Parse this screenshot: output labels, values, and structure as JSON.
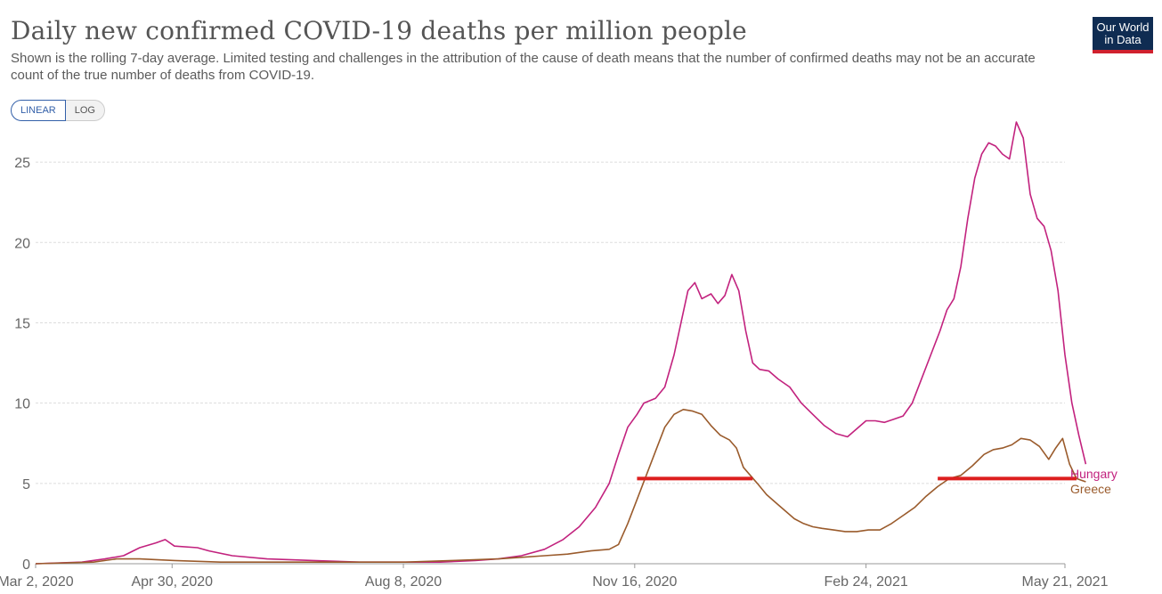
{
  "header": {
    "title": "Daily new confirmed COVID-19 deaths per million people",
    "subtitle": "Shown is the rolling 7-day average. Limited testing and challenges in the attribution of the cause of death means that the number of confirmed deaths may not be an accurate count of the true number of deaths from COVID-19.",
    "logo_line1": "Our World",
    "logo_line2": "in Data"
  },
  "controls": {
    "linear_label": "LINEAR",
    "log_label": "LOG",
    "selected": "LINEAR"
  },
  "colors": {
    "hungary": "#c2227e",
    "greece": "#9a5b2c",
    "highlight": "#dd1f1f",
    "grid": "#dddddd",
    "logo_bg": "#0f2c52",
    "logo_accent": "#d0202e",
    "toggle_active": "#3360a9"
  },
  "chart_data": {
    "type": "line",
    "title": "Daily new confirmed COVID-19 deaths per million people",
    "xlabel": "",
    "ylabel": "",
    "xlim": [
      "2020-03-02",
      "2021-05-21"
    ],
    "ylim": [
      0,
      27
    ],
    "x_ticks": [
      {
        "day": 0,
        "label": "Mar 2, 2020"
      },
      {
        "day": 59,
        "label": "Apr 30, 2020"
      },
      {
        "day": 159,
        "label": "Aug 8, 2020"
      },
      {
        "day": 259,
        "label": "Nov 16, 2020"
      },
      {
        "day": 359,
        "label": "Feb 24, 2021"
      },
      {
        "day": 445,
        "label": "May 21, 2021"
      }
    ],
    "y_ticks": [
      0,
      5,
      10,
      15,
      20,
      25
    ],
    "grid": true,
    "x_unit": "days since Mar 2, 2020",
    "series": [
      {
        "name": "Hungary",
        "points": [
          [
            0,
            0
          ],
          [
            20,
            0.1
          ],
          [
            30,
            0.3
          ],
          [
            38,
            0.5
          ],
          [
            45,
            1.0
          ],
          [
            52,
            1.3
          ],
          [
            56,
            1.5
          ],
          [
            60,
            1.1
          ],
          [
            70,
            1.0
          ],
          [
            75,
            0.8
          ],
          [
            85,
            0.5
          ],
          [
            100,
            0.3
          ],
          [
            120,
            0.2
          ],
          [
            140,
            0.1
          ],
          [
            160,
            0.1
          ],
          [
            175,
            0.1
          ],
          [
            190,
            0.2
          ],
          [
            200,
            0.3
          ],
          [
            210,
            0.5
          ],
          [
            220,
            0.9
          ],
          [
            228,
            1.5
          ],
          [
            235,
            2.3
          ],
          [
            242,
            3.5
          ],
          [
            248,
            5.0
          ],
          [
            252,
            6.8
          ],
          [
            256,
            8.5
          ],
          [
            260,
            9.3
          ],
          [
            263,
            10.0
          ],
          [
            268,
            10.3
          ],
          [
            272,
            11.0
          ],
          [
            276,
            13.0
          ],
          [
            279,
            15.0
          ],
          [
            282,
            17.0
          ],
          [
            285,
            17.5
          ],
          [
            288,
            16.5
          ],
          [
            292,
            16.8
          ],
          [
            295,
            16.2
          ],
          [
            298,
            16.7
          ],
          [
            301,
            18.0
          ],
          [
            304,
            17.0
          ],
          [
            307,
            14.5
          ],
          [
            310,
            12.5
          ],
          [
            313,
            12.1
          ],
          [
            317,
            12.0
          ],
          [
            321,
            11.5
          ],
          [
            326,
            11.0
          ],
          [
            331,
            10.0
          ],
          [
            336,
            9.3
          ],
          [
            341,
            8.6
          ],
          [
            346,
            8.1
          ],
          [
            351,
            7.9
          ],
          [
            355,
            8.4
          ],
          [
            359,
            8.9
          ],
          [
            363,
            8.9
          ],
          [
            367,
            8.8
          ],
          [
            371,
            9.0
          ],
          [
            375,
            9.2
          ],
          [
            379,
            10.0
          ],
          [
            383,
            11.5
          ],
          [
            387,
            13.0
          ],
          [
            391,
            14.5
          ],
          [
            394,
            15.8
          ],
          [
            397,
            16.5
          ],
          [
            400,
            18.5
          ],
          [
            403,
            21.5
          ],
          [
            406,
            24.0
          ],
          [
            409,
            25.5
          ],
          [
            412,
            26.2
          ],
          [
            415,
            26.0
          ],
          [
            418,
            25.5
          ],
          [
            421,
            25.2
          ],
          [
            424,
            27.5
          ],
          [
            427,
            26.5
          ],
          [
            430,
            23.0
          ],
          [
            433,
            21.5
          ],
          [
            436,
            21.0
          ],
          [
            439,
            19.5
          ],
          [
            442,
            17.0
          ],
          [
            445,
            13.0
          ],
          [
            448,
            10.0
          ],
          [
            451,
            8.0
          ],
          [
            454,
            6.2
          ]
        ]
      },
      {
        "name": "Greece",
        "points": [
          [
            0,
            0
          ],
          [
            25,
            0.1
          ],
          [
            35,
            0.3
          ],
          [
            45,
            0.3
          ],
          [
            60,
            0.2
          ],
          [
            80,
            0.1
          ],
          [
            100,
            0.1
          ],
          [
            140,
            0.1
          ],
          [
            160,
            0.1
          ],
          [
            180,
            0.2
          ],
          [
            200,
            0.3
          ],
          [
            210,
            0.4
          ],
          [
            220,
            0.5
          ],
          [
            230,
            0.6
          ],
          [
            240,
            0.8
          ],
          [
            248,
            0.9
          ],
          [
            252,
            1.2
          ],
          [
            256,
            2.5
          ],
          [
            260,
            4.0
          ],
          [
            264,
            5.5
          ],
          [
            268,
            7.0
          ],
          [
            272,
            8.5
          ],
          [
            276,
            9.3
          ],
          [
            280,
            9.6
          ],
          [
            284,
            9.5
          ],
          [
            288,
            9.3
          ],
          [
            292,
            8.6
          ],
          [
            296,
            8.0
          ],
          [
            300,
            7.7
          ],
          [
            303,
            7.2
          ],
          [
            306,
            6.0
          ],
          [
            309,
            5.5
          ],
          [
            312,
            5.0
          ],
          [
            316,
            4.3
          ],
          [
            320,
            3.8
          ],
          [
            324,
            3.3
          ],
          [
            328,
            2.8
          ],
          [
            332,
            2.5
          ],
          [
            336,
            2.3
          ],
          [
            340,
            2.2
          ],
          [
            345,
            2.1
          ],
          [
            350,
            2.0
          ],
          [
            355,
            2.0
          ],
          [
            360,
            2.1
          ],
          [
            365,
            2.1
          ],
          [
            370,
            2.5
          ],
          [
            375,
            3.0
          ],
          [
            380,
            3.5
          ],
          [
            385,
            4.2
          ],
          [
            390,
            4.8
          ],
          [
            395,
            5.3
          ],
          [
            400,
            5.5
          ],
          [
            405,
            6.1
          ],
          [
            410,
            6.8
          ],
          [
            414,
            7.1
          ],
          [
            418,
            7.2
          ],
          [
            422,
            7.4
          ],
          [
            426,
            7.8
          ],
          [
            430,
            7.7
          ],
          [
            434,
            7.3
          ],
          [
            438,
            6.5
          ],
          [
            441,
            7.2
          ],
          [
            444,
            7.8
          ],
          [
            447,
            6.2
          ],
          [
            450,
            5.3
          ],
          [
            454,
            5.1
          ]
        ]
      }
    ],
    "highlights": [
      {
        "from_day": 260,
        "to_day": 310,
        "value": 5.3
      },
      {
        "from_day": 390,
        "to_day": 450,
        "value": 5.3
      }
    ]
  }
}
